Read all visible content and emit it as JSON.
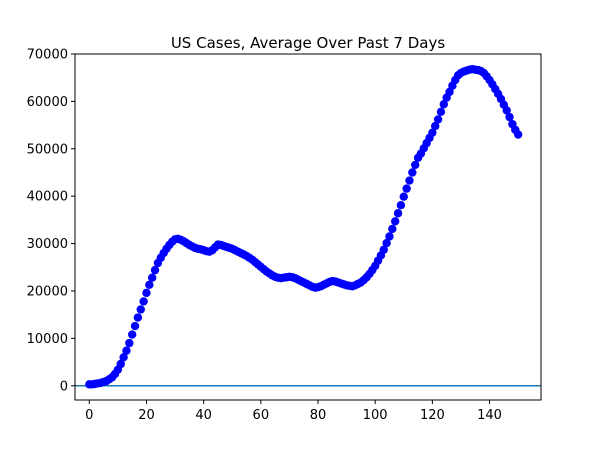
{
  "chart_data": {
    "type": "scatter",
    "title": "US Cases, Average Over Past 7 Days",
    "xlabel": "",
    "ylabel": "",
    "xlim": [
      -5,
      158
    ],
    "ylim": [
      -3000,
      70000
    ],
    "xticks": [
      0,
      20,
      40,
      60,
      80,
      100,
      120,
      140
    ],
    "yticks": [
      0,
      10000,
      20000,
      30000,
      40000,
      50000,
      60000,
      70000
    ],
    "grid": false,
    "reference_line": {
      "y": 0,
      "color": "#1f77b4"
    },
    "series": [
      {
        "color": "#0000ff",
        "x": [
          0,
          1,
          2,
          3,
          4,
          5,
          6,
          7,
          8,
          9,
          10,
          11,
          12,
          13,
          14,
          15,
          16,
          17,
          18,
          19,
          20,
          21,
          22,
          23,
          24,
          25,
          26,
          27,
          28,
          29,
          30,
          31,
          32,
          33,
          34,
          35,
          36,
          37,
          38,
          39,
          40,
          41,
          42,
          43,
          44,
          45,
          46,
          47,
          48,
          49,
          50,
          51,
          52,
          53,
          54,
          55,
          56,
          57,
          58,
          59,
          60,
          61,
          62,
          63,
          64,
          65,
          66,
          67,
          68,
          69,
          70,
          71,
          72,
          73,
          74,
          75,
          76,
          77,
          78,
          79,
          80,
          81,
          82,
          83,
          84,
          85,
          86,
          87,
          88,
          89,
          90,
          91,
          92,
          93,
          94,
          95,
          96,
          97,
          98,
          99,
          100,
          101,
          102,
          103,
          104,
          105,
          106,
          107,
          108,
          109,
          110,
          111,
          112,
          113,
          114,
          115,
          116,
          117,
          118,
          119,
          120,
          121,
          122,
          123,
          124,
          125,
          126,
          127,
          128,
          129,
          130,
          131,
          132,
          133,
          134,
          135,
          136,
          137,
          138,
          139,
          140,
          141,
          142,
          143,
          144,
          145,
          146,
          147,
          148,
          149,
          150
        ],
        "y": [
          300,
          300,
          400,
          500,
          600,
          800,
          1000,
          1400,
          1800,
          2500,
          3400,
          4600,
          6000,
          7400,
          9000,
          10800,
          12600,
          14400,
          16100,
          17800,
          19600,
          21300,
          22800,
          24400,
          25900,
          27000,
          28000,
          28900,
          29700,
          30400,
          30900,
          31000,
          30800,
          30500,
          30100,
          29700,
          29400,
          29100,
          28900,
          28800,
          28600,
          28400,
          28300,
          28600,
          29200,
          29800,
          29700,
          29500,
          29300,
          29100,
          28900,
          28600,
          28300,
          28000,
          27700,
          27400,
          27000,
          26600,
          26100,
          25600,
          25100,
          24600,
          24100,
          23700,
          23300,
          23000,
          22800,
          22700,
          22800,
          22900,
          23000,
          22900,
          22700,
          22400,
          22100,
          21800,
          21500,
          21200,
          20900,
          20700,
          20800,
          21000,
          21300,
          21600,
          21900,
          22100,
          22000,
          21800,
          21600,
          21400,
          21200,
          21100,
          21000,
          21200,
          21500,
          21800,
          22300,
          22900,
          23600,
          24400,
          25300,
          26400,
          27500,
          28700,
          30100,
          31500,
          33100,
          34700,
          36400,
          38100,
          39900,
          41600,
          43300,
          45000,
          46600,
          48100,
          49000,
          50100,
          51200,
          52300,
          53400,
          54800,
          56200,
          57800,
          59400,
          60800,
          62000,
          63300,
          64500,
          65500,
          66000,
          66300,
          66500,
          66700,
          66800,
          66700,
          66600,
          66400,
          66000,
          65300,
          64500,
          63600,
          62600,
          61600,
          60500,
          59300,
          58100,
          56700,
          55200,
          54000,
          53000
        ]
      }
    ]
  }
}
